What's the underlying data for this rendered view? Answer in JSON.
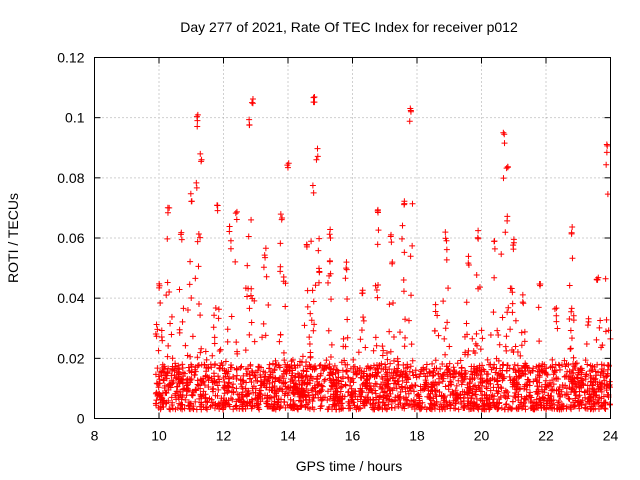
{
  "chart_data": {
    "type": "scatter",
    "title": "Day 277 of 2021, Rate Of TEC Index for receiver p012",
    "xlabel": "GPS time / hours",
    "ylabel": "ROTI / TECUs",
    "xlim": [
      8,
      24
    ],
    "ylim": [
      0,
      0.12
    ],
    "xticks": [
      "8",
      "10",
      "12",
      "14",
      "16",
      "18",
      "20",
      "22",
      "24"
    ],
    "yticks": [
      "0",
      "0.02",
      "0.04",
      "0.06",
      "0.08",
      "0.1",
      "0.12"
    ],
    "grid": true,
    "marker": "+",
    "color": "#ff0000",
    "x_range_of_data": [
      9.9,
      24.0
    ],
    "activity_envelope": [
      {
        "x": 10.0,
        "y": 0.047
      },
      {
        "x": 10.3,
        "y": 0.072
      },
      {
        "x": 10.7,
        "y": 0.063
      },
      {
        "x": 11.0,
        "y": 0.075
      },
      {
        "x": 11.2,
        "y": 0.101
      },
      {
        "x": 11.3,
        "y": 0.088
      },
      {
        "x": 11.8,
        "y": 0.072
      },
      {
        "x": 12.2,
        "y": 0.064
      },
      {
        "x": 12.4,
        "y": 0.069
      },
      {
        "x": 12.8,
        "y": 0.101
      },
      {
        "x": 12.9,
        "y": 0.108
      },
      {
        "x": 13.3,
        "y": 0.057
      },
      {
        "x": 13.8,
        "y": 0.068
      },
      {
        "x": 14.0,
        "y": 0.086
      },
      {
        "x": 14.6,
        "y": 0.061
      },
      {
        "x": 14.8,
        "y": 0.108
      },
      {
        "x": 14.9,
        "y": 0.09
      },
      {
        "x": 15.3,
        "y": 0.063
      },
      {
        "x": 15.8,
        "y": 0.052
      },
      {
        "x": 16.3,
        "y": 0.045
      },
      {
        "x": 16.8,
        "y": 0.072
      },
      {
        "x": 17.2,
        "y": 0.062
      },
      {
        "x": 17.6,
        "y": 0.074
      },
      {
        "x": 17.8,
        "y": 0.104
      },
      {
        "x": 18.6,
        "y": 0.038
      },
      {
        "x": 18.9,
        "y": 0.062
      },
      {
        "x": 19.6,
        "y": 0.055
      },
      {
        "x": 19.9,
        "y": 0.063
      },
      {
        "x": 20.4,
        "y": 0.059
      },
      {
        "x": 20.7,
        "y": 0.095
      },
      {
        "x": 20.8,
        "y": 0.087
      },
      {
        "x": 21.0,
        "y": 0.06
      },
      {
        "x": 21.3,
        "y": 0.042
      },
      {
        "x": 21.8,
        "y": 0.048
      },
      {
        "x": 22.3,
        "y": 0.038
      },
      {
        "x": 22.8,
        "y": 0.064
      },
      {
        "x": 23.3,
        "y": 0.035
      },
      {
        "x": 23.6,
        "y": 0.048
      },
      {
        "x": 23.9,
        "y": 0.092
      }
    ],
    "baseline_band": [
      0.003,
      0.018
    ],
    "point_count_estimate": 2400
  }
}
